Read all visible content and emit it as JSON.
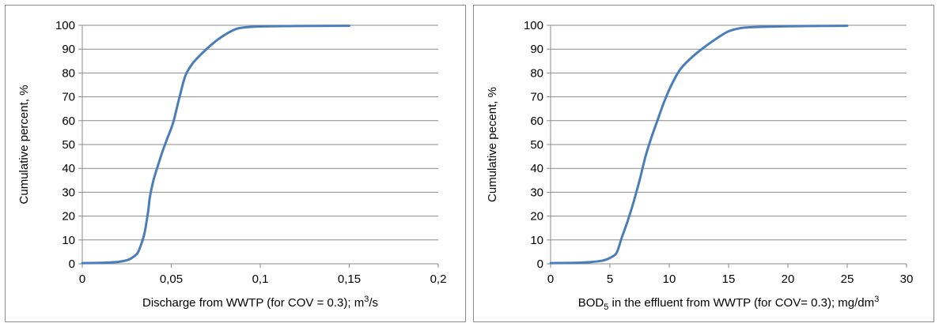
{
  "chart_data": [
    {
      "type": "line",
      "title": "",
      "xlabel": "Discharge from WWTP (for COV = 0.3); m",
      "xlabel_sup": "3",
      "xlabel_tail": "/s",
      "ylabel": "Cumulative percent, %",
      "xlim": [
        0,
        0.2
      ],
      "ylim": [
        0,
        100
      ],
      "x_ticks": [
        "0",
        "0,05",
        "0,1",
        "0,15",
        "0,2"
      ],
      "x_tick_values": [
        0,
        0.05,
        0.1,
        0.15,
        0.2
      ],
      "y_ticks": [
        "0",
        "10",
        "20",
        "30",
        "40",
        "50",
        "60",
        "70",
        "80",
        "90",
        "100"
      ],
      "y_tick_values": [
        0,
        10,
        20,
        30,
        40,
        50,
        60,
        70,
        80,
        90,
        100
      ],
      "grid": true,
      "legend": "none",
      "color": "#4a7ebb",
      "series": [
        {
          "x": [
            0,
            0.01,
            0.02,
            0.025,
            0.028,
            0.031,
            0.033,
            0.035,
            0.037,
            0.038,
            0.04,
            0.042,
            0.045,
            0.048,
            0.051,
            0.053,
            0.055,
            0.058,
            0.062,
            0.067,
            0.072,
            0.078,
            0.085,
            0.09,
            0.1,
            0.12,
            0.15
          ],
          "y": [
            0.3,
            0.4,
            0.8,
            1.5,
            2.5,
            4.5,
            8,
            13,
            22,
            28,
            35,
            40,
            47,
            53,
            59,
            65,
            71,
            79,
            84,
            88,
            91.5,
            95,
            98,
            99,
            99.5,
            99.7,
            99.8
          ]
        }
      ]
    },
    {
      "type": "line",
      "title": "",
      "xlabel_pre": "BOD",
      "xlabel_sub": "5",
      "xlabel": " in the effluent from WWTP (for COV= 0.3); mg/dm",
      "xlabel_sup": "3",
      "ylabel": "Cumulative pecent, %",
      "xlim": [
        0,
        30
      ],
      "ylim": [
        0,
        100
      ],
      "x_ticks": [
        "0",
        "5",
        "10",
        "15",
        "20",
        "25",
        "30"
      ],
      "x_tick_values": [
        0,
        5,
        10,
        15,
        20,
        25,
        30
      ],
      "y_ticks": [
        "0",
        "10",
        "20",
        "30",
        "40",
        "50",
        "60",
        "70",
        "80",
        "90",
        "100"
      ],
      "y_tick_values": [
        0,
        10,
        20,
        30,
        40,
        50,
        60,
        70,
        80,
        90,
        100
      ],
      "grid": true,
      "legend": "none",
      "color": "#4a7ebb",
      "series": [
        {
          "x": [
            0,
            2,
            3.5,
            4.5,
            5.2,
            5.6,
            6,
            6.5,
            7,
            7.5,
            8,
            8.5,
            9,
            9.5,
            10,
            10.5,
            11,
            12,
            13,
            14,
            15,
            16,
            17,
            20,
            25
          ],
          "y": [
            0.3,
            0.4,
            0.8,
            1.5,
            3,
            5,
            11,
            18,
            26,
            35,
            45,
            53,
            60,
            67,
            73,
            78,
            82,
            87,
            91,
            94.5,
            97.5,
            98.8,
            99.2,
            99.6,
            99.8
          ]
        }
      ]
    }
  ]
}
